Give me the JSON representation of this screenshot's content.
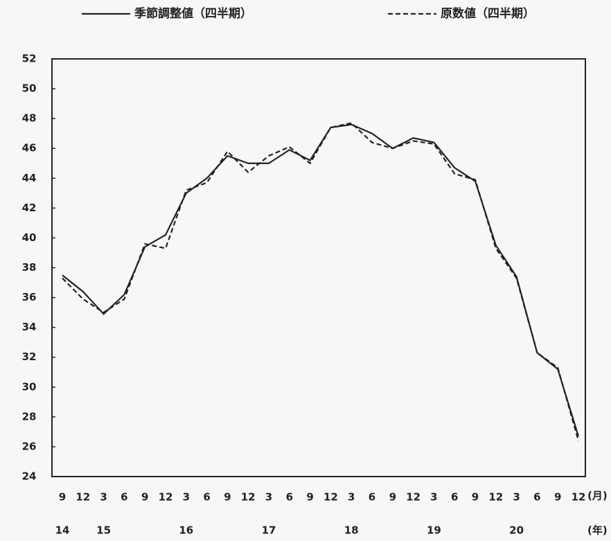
{
  "chart_data": {
    "type": "line",
    "categories": [
      "9",
      "12",
      "3",
      "6",
      "9",
      "12",
      "3",
      "6",
      "9",
      "12",
      "3",
      "6",
      "9",
      "12",
      "3",
      "6",
      "9",
      "12",
      "3",
      "6",
      "9",
      "12",
      "3",
      "6",
      "9",
      "12"
    ],
    "year_labels": [
      "14",
      null,
      "15",
      null,
      null,
      null,
      "16",
      null,
      null,
      null,
      "17",
      null,
      null,
      null,
      "18",
      null,
      null,
      null,
      "19",
      null,
      null,
      null,
      "20",
      null,
      null,
      null
    ],
    "x_unit": "(月)",
    "year_unit": "(年)",
    "series": [
      {
        "name": "季節調整値（四半期）",
        "color": "#222222",
        "dash": false,
        "values": [
          37.5,
          36.4,
          34.9,
          36.2,
          39.4,
          40.2,
          43.0,
          44.0,
          45.5,
          45.0,
          45.0,
          45.9,
          45.2,
          47.4,
          47.6,
          47.0,
          46.0,
          46.7,
          46.4,
          44.7,
          43.8,
          39.5,
          37.4,
          32.3,
          31.2,
          26.7
        ]
      },
      {
        "name": "原数値（四半期）",
        "color": "#222222",
        "dash": true,
        "values": [
          37.3,
          35.9,
          35.0,
          35.9,
          39.6,
          39.3,
          43.2,
          43.7,
          45.8,
          44.4,
          45.5,
          46.1,
          45.0,
          47.4,
          47.7,
          46.4,
          46.0,
          46.5,
          46.3,
          44.3,
          43.9,
          39.3,
          37.3,
          32.3,
          31.3,
          26.4
        ]
      }
    ],
    "ylim": [
      24,
      52
    ],
    "yticks": [
      24,
      26,
      28,
      30,
      32,
      34,
      36,
      38,
      40,
      42,
      44,
      46,
      48,
      50,
      52
    ]
  }
}
